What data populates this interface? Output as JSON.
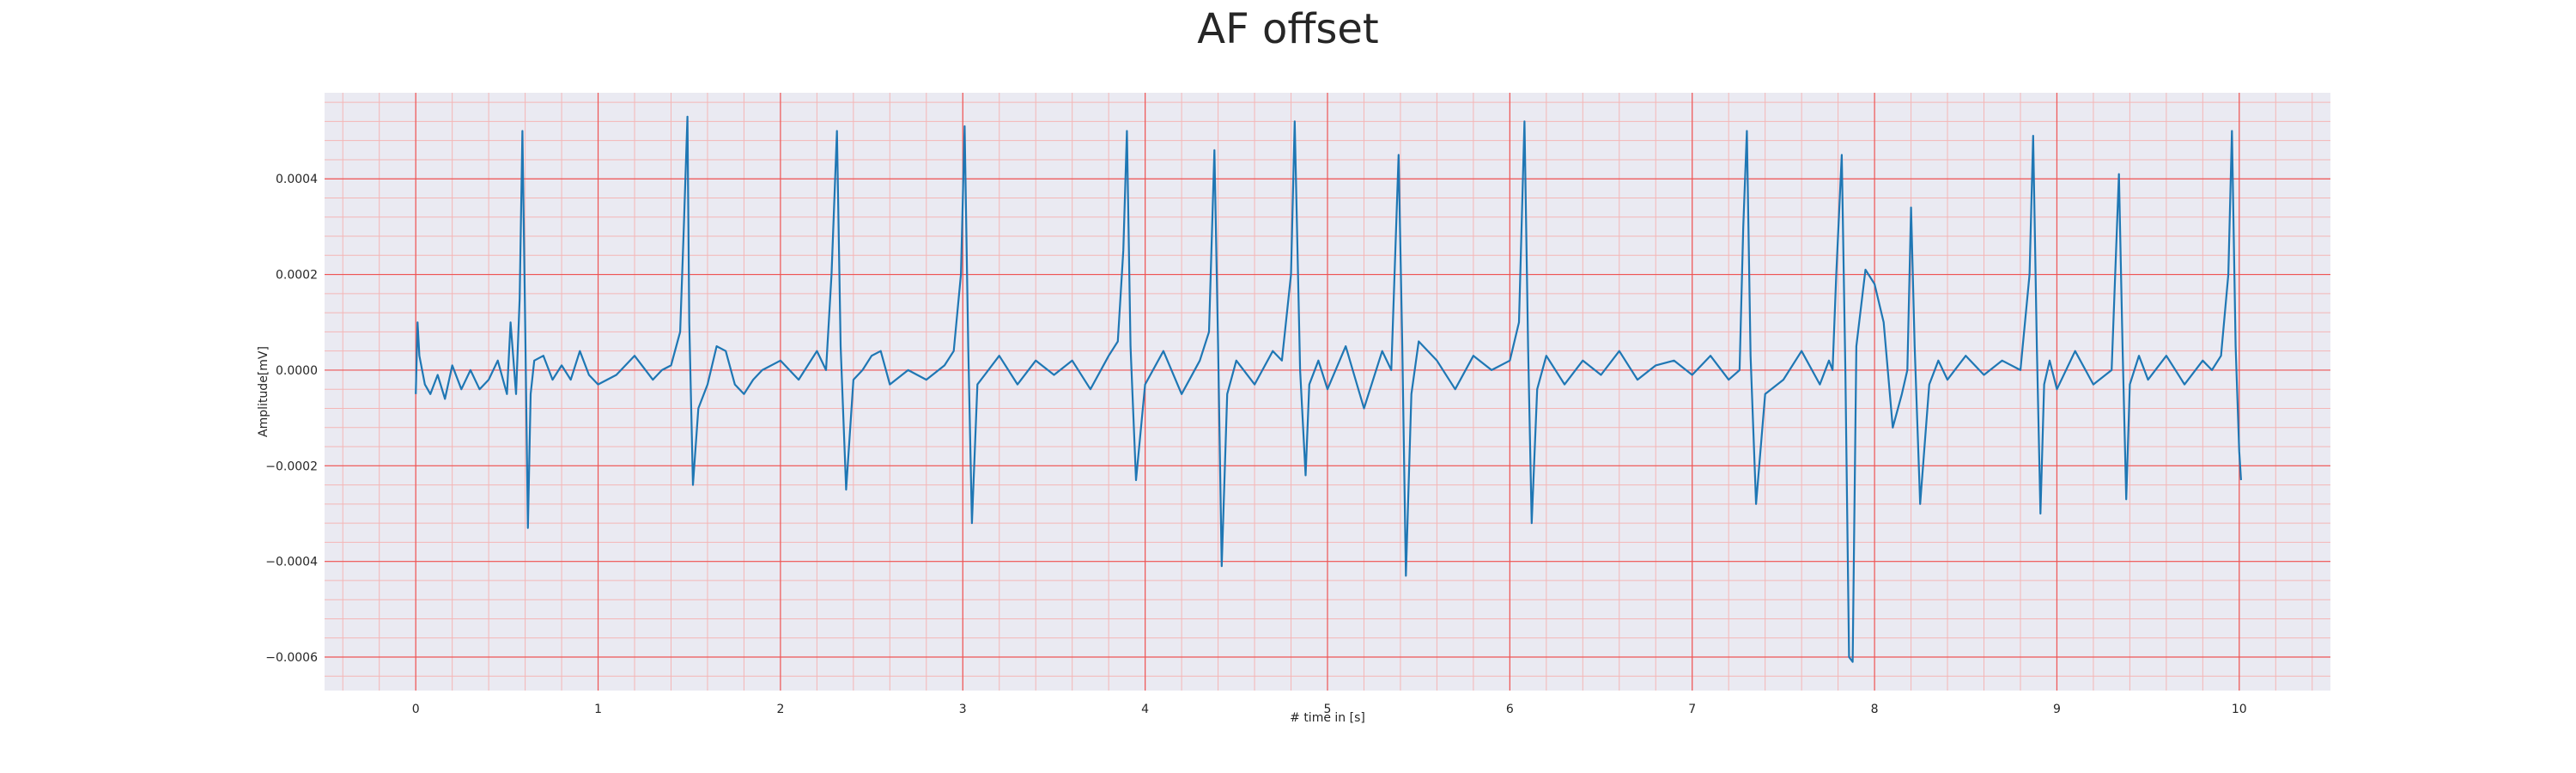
{
  "chart_data": {
    "type": "line",
    "title": "AF offset",
    "xlabel": "# time in [s]",
    "ylabel": "Amplitude[mV]",
    "xlim": [
      -0.5,
      10.5
    ],
    "ylim": [
      -0.00067,
      0.00058
    ],
    "xticks": [
      0,
      1,
      2,
      3,
      4,
      5,
      6,
      7,
      8,
      9,
      10
    ],
    "yticks": [
      -0.0006,
      -0.0004,
      -0.0002,
      0.0,
      0.0002,
      0.0004
    ],
    "ytick_labels": [
      "−0.0006",
      "−0.0004",
      "−0.0002",
      "0.0000",
      "0.0002",
      "0.0004"
    ],
    "grid": true,
    "legend": "none",
    "series": [
      {
        "color": "#1f77b4",
        "x": [
          0.0,
          0.01,
          0.02,
          0.05,
          0.08,
          0.12,
          0.16,
          0.2,
          0.25,
          0.3,
          0.35,
          0.4,
          0.45,
          0.5,
          0.52,
          0.55,
          0.57,
          0.585,
          0.6,
          0.615,
          0.63,
          0.65,
          0.7,
          0.75,
          0.8,
          0.85,
          0.9,
          0.95,
          1.0,
          1.1,
          1.2,
          1.3,
          1.35,
          1.4,
          1.45,
          1.47,
          1.49,
          1.5,
          1.52,
          1.55,
          1.6,
          1.65,
          1.7,
          1.75,
          1.8,
          1.85,
          1.9,
          2.0,
          2.1,
          2.2,
          2.25,
          2.28,
          2.31,
          2.33,
          2.36,
          2.4,
          2.45,
          2.5,
          2.55,
          2.6,
          2.7,
          2.8,
          2.9,
          2.95,
          2.99,
          3.01,
          3.03,
          3.05,
          3.08,
          3.12,
          3.2,
          3.3,
          3.4,
          3.5,
          3.6,
          3.7,
          3.8,
          3.85,
          3.88,
          3.9,
          3.92,
          3.95,
          4.0,
          4.1,
          4.2,
          4.3,
          4.35,
          4.38,
          4.4,
          4.42,
          4.45,
          4.5,
          4.6,
          4.7,
          4.75,
          4.8,
          4.82,
          4.85,
          4.88,
          4.9,
          4.95,
          5.0,
          5.1,
          5.2,
          5.3,
          5.35,
          5.39,
          5.41,
          5.43,
          5.46,
          5.5,
          5.6,
          5.7,
          5.8,
          5.9,
          6.0,
          6.05,
          6.08,
          6.1,
          6.12,
          6.15,
          6.2,
          6.3,
          6.4,
          6.5,
          6.6,
          6.7,
          6.8,
          6.9,
          7.0,
          7.1,
          7.2,
          7.26,
          7.28,
          7.3,
          7.32,
          7.35,
          7.4,
          7.5,
          7.6,
          7.7,
          7.75,
          7.77,
          7.79,
          7.82,
          7.84,
          7.86,
          7.88,
          7.9,
          7.95,
          8.0,
          8.05,
          8.1,
          8.15,
          8.18,
          8.2,
          8.22,
          8.25,
          8.3,
          8.35,
          8.4,
          8.5,
          8.6,
          8.7,
          8.8,
          8.85,
          8.87,
          8.89,
          8.91,
          8.93,
          8.96,
          9.0,
          9.1,
          9.2,
          9.3,
          9.34,
          9.36,
          9.38,
          9.4,
          9.45,
          9.5,
          9.6,
          9.7,
          9.8,
          9.85,
          9.9,
          9.94,
          9.96,
          9.98,
          10.0,
          10.01
        ],
        "y": [
          -5e-05,
          0.0001,
          3e-05,
          -3e-05,
          -5e-05,
          -1e-05,
          -6e-05,
          1e-05,
          -4e-05,
          0.0,
          -4e-05,
          -2e-05,
          2e-05,
          -5e-05,
          0.0001,
          -5e-05,
          0.00015,
          0.0005,
          0.0001,
          -0.00033,
          -5e-05,
          2e-05,
          3e-05,
          -2e-05,
          1e-05,
          -2e-05,
          4e-05,
          -1e-05,
          -3e-05,
          -1e-05,
          3e-05,
          -2e-05,
          0.0,
          1e-05,
          8e-05,
          0.0003,
          0.00053,
          0.0001,
          -0.00024,
          -8e-05,
          -3e-05,
          5e-05,
          4e-05,
          -3e-05,
          -5e-05,
          -2e-05,
          0.0,
          2e-05,
          -2e-05,
          4e-05,
          0.0,
          0.0002,
          0.0005,
          5e-05,
          -0.00025,
          -2e-05,
          0.0,
          3e-05,
          4e-05,
          -3e-05,
          0.0,
          -2e-05,
          1e-05,
          4e-05,
          0.0002,
          0.00051,
          5e-05,
          -0.00032,
          -3e-05,
          -1e-05,
          3e-05,
          -3e-05,
          2e-05,
          -1e-05,
          2e-05,
          -4e-05,
          3e-05,
          6e-05,
          0.00025,
          0.0005,
          5e-05,
          -0.00023,
          -3e-05,
          4e-05,
          -5e-05,
          2e-05,
          8e-05,
          0.00046,
          5e-05,
          -0.00041,
          -5e-05,
          2e-05,
          -3e-05,
          4e-05,
          2e-05,
          0.0002,
          0.00052,
          0.0,
          -0.00022,
          -3e-05,
          2e-05,
          -4e-05,
          5e-05,
          -8e-05,
          4e-05,
          0.0,
          0.00045,
          5e-05,
          -0.00043,
          -5e-05,
          6e-05,
          2e-05,
          -4e-05,
          3e-05,
          0.0,
          2e-05,
          0.0001,
          0.00052,
          5e-05,
          -0.00032,
          -4e-05,
          3e-05,
          -3e-05,
          2e-05,
          -1e-05,
          4e-05,
          -2e-05,
          1e-05,
          2e-05,
          -1e-05,
          3e-05,
          -2e-05,
          0.0,
          0.0003,
          0.0005,
          3e-05,
          -0.00028,
          -5e-05,
          -2e-05,
          4e-05,
          -3e-05,
          2e-05,
          0.0,
          0.0002,
          0.00045,
          0.0,
          -0.0006,
          -0.00061,
          5e-05,
          0.00021,
          0.00018,
          0.0001,
          -0.00012,
          -5e-05,
          0.0,
          0.00034,
          5e-05,
          -0.00028,
          -3e-05,
          2e-05,
          -2e-05,
          3e-05,
          -1e-05,
          2e-05,
          0.0,
          0.0002,
          0.00049,
          5e-05,
          -0.0003,
          -3e-05,
          2e-05,
          -4e-05,
          4e-05,
          -3e-05,
          0.0,
          0.00041,
          5e-05,
          -0.00027,
          -3e-05,
          3e-05,
          -2e-05,
          3e-05,
          -3e-05,
          2e-05,
          0.0,
          3e-05,
          0.0002,
          0.0005,
          5e-05,
          -0.00017,
          -0.00023
        ]
      }
    ]
  }
}
